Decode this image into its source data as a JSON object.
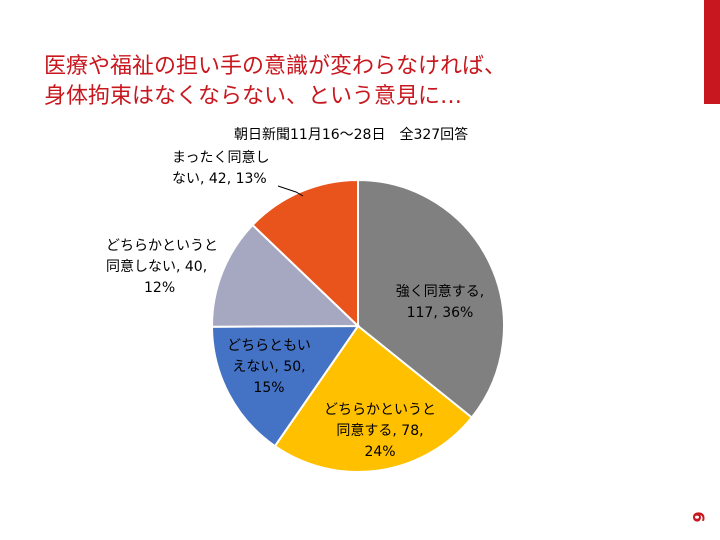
{
  "slide": {
    "title_line1": "医療や福祉の担い手の意識が変わらなければ、",
    "title_line2": "身体拘束はなくならない、という意見に…",
    "source": "朝日新聞11月16～28日　全327回答",
    "page_number": "6"
  },
  "colors": {
    "accent": "#c8171e"
  },
  "chart_data": {
    "type": "pie",
    "slices": [
      {
        "label": "強く同意する",
        "value": 117,
        "percent": "36%",
        "color": "#808080",
        "label_lines": [
          "強く同意する,",
          "117, 36%"
        ]
      },
      {
        "label": "どちらかというと同意する",
        "value": 78,
        "percent": "24%",
        "color": "#ffc000",
        "label_lines": [
          "どちらかというと",
          "同意する, 78,",
          "24%"
        ]
      },
      {
        "label": "どちらともいえない",
        "value": 50,
        "percent": "15%",
        "color": "#4472c4",
        "label_lines": [
          "どちらともい",
          "えない, 50,",
          "15%"
        ]
      },
      {
        "label": "どちらかというと同意しない",
        "value": 40,
        "percent": "12%",
        "color": "#a5a8c0",
        "label_lines": [
          "どちらかというと",
          "同意しない, 40,",
          "12%"
        ]
      },
      {
        "label": "まったく同意しない",
        "value": 42,
        "percent": "13%",
        "color": "#e8541c",
        "label_lines": [
          "まったく同意し",
          "ない, 42, 13%"
        ]
      }
    ]
  }
}
